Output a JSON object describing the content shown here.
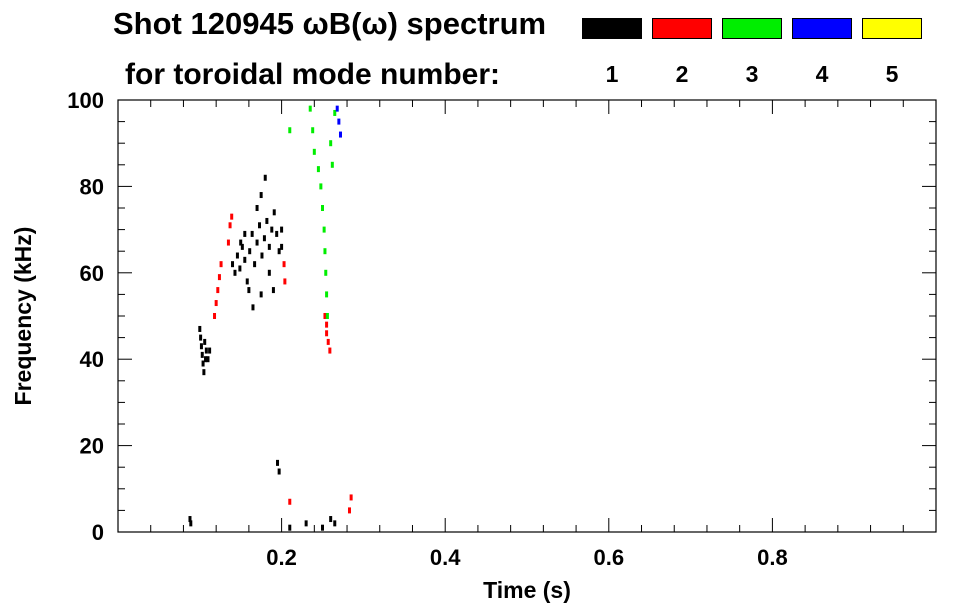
{
  "title": "Shot 120945 ωB(ω) spectrum",
  "subtitle": "for toroidal mode number:",
  "colors": {
    "axis": "#000000",
    "background": "#ffffff"
  },
  "legend": [
    {
      "label": "1",
      "color": "#000000"
    },
    {
      "label": "2",
      "color": "#ff0000"
    },
    {
      "label": "3",
      "color": "#00ee00"
    },
    {
      "label": "4",
      "color": "#0000ff"
    },
    {
      "label": "5",
      "color": "#ffff00"
    }
  ],
  "chart_data": {
    "type": "scatter",
    "title": "Shot 120945 ωB(ω) spectrum",
    "xlabel": "Time (s)",
    "ylabel": "Frequency (kHz)",
    "xlim": [
      0.0,
      1.0
    ],
    "ylim": [
      0,
      100
    ],
    "xticks": [
      0.2,
      0.4,
      0.6,
      0.8
    ],
    "yticks": [
      0,
      20,
      40,
      60,
      80,
      100
    ],
    "grid": false,
    "legend_position": "top-right",
    "series": [
      {
        "name": "1",
        "color": "#000000",
        "points": [
          [
            0.088,
            3
          ],
          [
            0.089,
            2
          ],
          [
            0.1,
            47
          ],
          [
            0.101,
            45
          ],
          [
            0.102,
            43
          ],
          [
            0.103,
            41
          ],
          [
            0.104,
            39
          ],
          [
            0.105,
            37
          ],
          [
            0.106,
            44
          ],
          [
            0.107,
            40
          ],
          [
            0.108,
            42
          ],
          [
            0.11,
            40
          ],
          [
            0.112,
            42
          ],
          [
            0.14,
            62
          ],
          [
            0.143,
            60
          ],
          [
            0.146,
            64
          ],
          [
            0.149,
            61
          ],
          [
            0.152,
            66
          ],
          [
            0.155,
            63
          ],
          [
            0.158,
            58
          ],
          [
            0.161,
            65
          ],
          [
            0.164,
            69
          ],
          [
            0.167,
            62
          ],
          [
            0.17,
            67
          ],
          [
            0.173,
            71
          ],
          [
            0.176,
            64
          ],
          [
            0.179,
            68
          ],
          [
            0.182,
            72
          ],
          [
            0.185,
            66
          ],
          [
            0.188,
            70
          ],
          [
            0.191,
            74
          ],
          [
            0.194,
            69
          ],
          [
            0.197,
            65
          ],
          [
            0.16,
            56
          ],
          [
            0.165,
            52
          ],
          [
            0.17,
            75
          ],
          [
            0.175,
            78
          ],
          [
            0.18,
            82
          ],
          [
            0.185,
            60
          ],
          [
            0.19,
            56
          ],
          [
            0.15,
            67
          ],
          [
            0.155,
            69
          ],
          [
            0.175,
            55
          ],
          [
            0.2,
            70
          ],
          [
            0.2,
            66
          ],
          [
            0.195,
            16
          ],
          [
            0.197,
            14
          ],
          [
            0.21,
            1
          ],
          [
            0.23,
            2
          ],
          [
            0.25,
            1
          ],
          [
            0.26,
            3
          ],
          [
            0.265,
            2
          ]
        ]
      },
      {
        "name": "2",
        "color": "#ff0000",
        "points": [
          [
            0.118,
            50
          ],
          [
            0.12,
            53
          ],
          [
            0.122,
            56
          ],
          [
            0.124,
            59
          ],
          [
            0.126,
            62
          ],
          [
            0.135,
            67
          ],
          [
            0.137,
            71
          ],
          [
            0.139,
            73
          ],
          [
            0.203,
            62
          ],
          [
            0.204,
            58
          ],
          [
            0.255,
            46
          ],
          [
            0.257,
            44
          ],
          [
            0.259,
            42
          ],
          [
            0.253,
            50
          ],
          [
            0.255,
            48
          ],
          [
            0.21,
            7
          ],
          [
            0.285,
            8
          ],
          [
            0.283,
            5
          ]
        ]
      },
      {
        "name": "3",
        "color": "#00ee00",
        "points": [
          [
            0.235,
            98
          ],
          [
            0.238,
            93
          ],
          [
            0.24,
            88
          ],
          [
            0.245,
            84
          ],
          [
            0.248,
            80
          ],
          [
            0.25,
            75
          ],
          [
            0.252,
            70
          ],
          [
            0.253,
            65
          ],
          [
            0.254,
            60
          ],
          [
            0.255,
            55
          ],
          [
            0.256,
            50
          ],
          [
            0.26,
            90
          ],
          [
            0.262,
            85
          ],
          [
            0.21,
            93
          ],
          [
            0.265,
            97
          ]
        ]
      },
      {
        "name": "4",
        "color": "#0000ff",
        "points": [
          [
            0.268,
            98
          ],
          [
            0.27,
            95
          ],
          [
            0.272,
            92
          ]
        ]
      },
      {
        "name": "5",
        "color": "#ffff00",
        "points": []
      }
    ]
  }
}
